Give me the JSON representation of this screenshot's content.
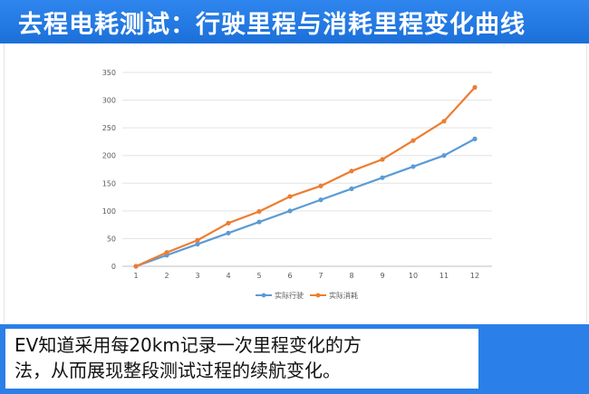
{
  "header": {
    "title": "去程电耗测试：行驶里程与消耗里程变化曲线"
  },
  "caption": {
    "line1": "EV知道采用每20km记录一次里程变化的方",
    "line2": "法，从而展现整段测试过程的续航变化。"
  },
  "colors": {
    "title_bar": "#2a7fe8",
    "series_actual_drive": "#5b9bd5",
    "series_actual_consume": "#ed7d31"
  },
  "chart_data": {
    "type": "line",
    "x": [
      1,
      2,
      3,
      4,
      5,
      6,
      7,
      8,
      9,
      10,
      11,
      12
    ],
    "x_tick_labels": [
      "1",
      "2",
      "3",
      "4",
      "5",
      "6",
      "7",
      "8",
      "9",
      "10",
      "11",
      "12"
    ],
    "ylim": [
      0,
      350
    ],
    "y_ticks": [
      0,
      50,
      100,
      150,
      200,
      250,
      300,
      350
    ],
    "y_tick_labels": [
      "0",
      "50",
      "100",
      "150",
      "200",
      "250",
      "300",
      "350"
    ],
    "grid": true,
    "legend_position": "bottom",
    "series": [
      {
        "name": "实际行驶",
        "color": "#5b9bd5",
        "values": [
          0,
          20,
          40,
          60,
          80,
          100,
          120,
          140,
          160,
          180,
          200,
          230
        ]
      },
      {
        "name": "实际消耗",
        "color": "#ed7d31",
        "values": [
          0,
          25,
          47,
          78,
          99,
          126,
          145,
          172,
          193,
          227,
          262,
          323
        ]
      }
    ]
  }
}
